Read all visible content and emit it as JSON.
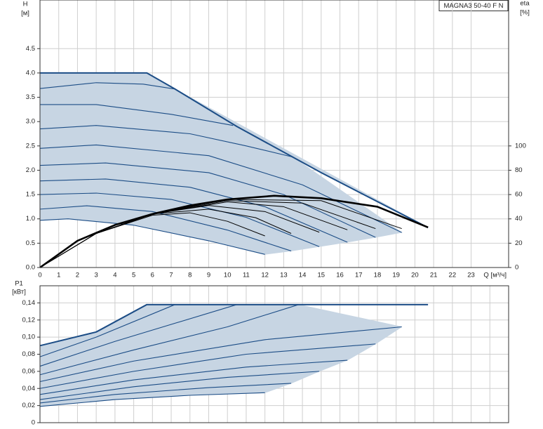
{
  "chart_data": [
    {
      "type": "line",
      "title": "MAGNA3 50-40 F N",
      "ylabel": "H",
      "yunit": "[м]",
      "y2label": "eta",
      "y2unit": "[%]",
      "xlabel": "Q [м³/ч]",
      "xlim": [
        0,
        25
      ],
      "xticks": [
        0,
        1,
        2,
        3,
        4,
        5,
        6,
        7,
        8,
        9,
        10,
        11,
        12,
        13,
        14,
        15,
        16,
        17,
        18,
        19,
        20,
        21,
        22,
        23
      ],
      "ylim": [
        0,
        5.5
      ],
      "yticks": [
        {
          "value": 0,
          "label": "0.0"
        },
        0.5,
        {
          "value": 1,
          "label": "1.0"
        },
        1.5,
        {
          "value": 2,
          "label": "2.0"
        },
        2.5,
        {
          "value": 3,
          "label": "3.0"
        },
        3.5,
        {
          "value": 4,
          "label": "4.0"
        },
        4.5
      ],
      "y2lim": [
        0,
        220
      ],
      "y2ticks": [
        0,
        20,
        40,
        60,
        80,
        100
      ],
      "grid": true,
      "fill": "#c7d5e3",
      "series": [
        {
          "color": "#1c4d86",
          "x": [
            0,
            5.7,
            7.2,
            10.5,
            15,
            20.7
          ],
          "values": [
            4.0,
            4.0,
            3.67,
            2.9,
            1.95,
            0.82
          ]
        },
        {
          "color": "#1c4d86",
          "x": [
            0,
            3,
            5.5,
            7.2
          ],
          "values": [
            3.68,
            3.8,
            3.77,
            3.67
          ]
        },
        {
          "color": "#1c4d86",
          "x": [
            0,
            3,
            7,
            10.3
          ],
          "values": [
            3.35,
            3.35,
            3.15,
            2.92
          ]
        },
        {
          "color": "#1c4d86",
          "x": [
            0,
            3,
            8,
            11,
            13.5
          ],
          "values": [
            2.85,
            2.92,
            2.75,
            2.5,
            2.27
          ]
        },
        {
          "color": "#1c4d86",
          "x": [
            0,
            3,
            9,
            14,
            19.3
          ],
          "values": [
            2.45,
            2.52,
            2.3,
            1.7,
            0.72
          ]
        },
        {
          "color": "#1c4d86",
          "x": [
            0,
            3.5,
            9,
            13,
            17.9
          ],
          "values": [
            2.1,
            2.15,
            1.95,
            1.5,
            0.62
          ]
        },
        {
          "color": "#1c4d86",
          "x": [
            0,
            3.5,
            8,
            12,
            16.4
          ],
          "values": [
            1.78,
            1.82,
            1.65,
            1.25,
            0.52
          ]
        },
        {
          "color": "#1c4d86",
          "x": [
            0,
            3,
            7,
            11,
            14.9
          ],
          "values": [
            1.5,
            1.53,
            1.4,
            1.03,
            0.43
          ]
        },
        {
          "color": "#1c4d86",
          "x": [
            0,
            2.5,
            6,
            10,
            13.4
          ],
          "values": [
            1.2,
            1.27,
            1.15,
            0.77,
            0.34
          ]
        },
        {
          "color": "#1c4d86",
          "x": [
            0,
            1.5,
            5,
            9,
            12
          ],
          "values": [
            0.97,
            1.0,
            0.87,
            0.55,
            0.27
          ]
        },
        {
          "color": "#000000",
          "axis": "y2",
          "x": [
            0,
            2,
            4,
            6,
            8,
            10,
            12.5,
            15,
            18,
            20.7
          ],
          "values": [
            0,
            22,
            35,
            44,
            51,
            56,
            59,
            57,
            50,
            33
          ]
        },
        {
          "color": "#000000",
          "axis": "y2",
          "x": [
            0,
            3,
            6,
            10,
            15,
            19.3
          ],
          "values": [
            0,
            28,
            44,
            56,
            55,
            32
          ]
        },
        {
          "color": "#000000",
          "axis": "y2",
          "x": [
            0,
            3,
            6,
            10,
            14,
            17.9
          ],
          "values": [
            0,
            28,
            44,
            55,
            53,
            32
          ]
        },
        {
          "color": "#000000",
          "axis": "y2",
          "x": [
            0,
            3,
            6,
            10,
            13,
            16.4
          ],
          "values": [
            0,
            28,
            44,
            54,
            50,
            31
          ]
        },
        {
          "color": "#000000",
          "axis": "y2",
          "x": [
            0,
            3,
            6,
            9,
            12,
            14.9
          ],
          "values": [
            0,
            28,
            44,
            51,
            46,
            29
          ]
        },
        {
          "color": "#000000",
          "axis": "y2",
          "x": [
            0,
            3,
            6,
            9,
            11.5,
            13.4
          ],
          "values": [
            0,
            28,
            44,
            48,
            41,
            28
          ]
        },
        {
          "color": "#000000",
          "axis": "y2",
          "x": [
            0,
            3,
            6,
            8,
            10,
            12
          ],
          "values": [
            0,
            28,
            43,
            45,
            38,
            26
          ]
        }
      ]
    },
    {
      "type": "line",
      "ylabel": "P1",
      "yunit": "[кВт]",
      "xlim": [
        0,
        25
      ],
      "xgrid": [
        0,
        1,
        2,
        3,
        4,
        5,
        6,
        7,
        8,
        9,
        10,
        11,
        12,
        13,
        14,
        15,
        16,
        17,
        18,
        19,
        20,
        21,
        22,
        23,
        24
      ],
      "ylim": [
        0,
        0.16
      ],
      "yticks": [
        0,
        {
          "value": 0.02,
          "label": "0,02"
        },
        {
          "value": 0.04,
          "label": "0,04"
        },
        {
          "value": 0.06,
          "label": "0,06"
        },
        {
          "value": 0.08,
          "label": "0,08"
        },
        {
          "value": 0.1,
          "label": "0,10"
        },
        {
          "value": 0.12,
          "label": "0,12"
        },
        {
          "value": 0.14,
          "label": "0,14"
        }
      ],
      "grid": true,
      "fill": "#c7d5e3",
      "series": [
        {
          "color": "#1c4d86",
          "x": [
            0,
            3,
            5.7,
            20.7
          ],
          "values": [
            0.09,
            0.106,
            0.138,
            0.138
          ]
        },
        {
          "color": "#1c4d86",
          "x": [
            0,
            3,
            7.2
          ],
          "values": [
            0.077,
            0.1,
            0.138
          ]
        },
        {
          "color": "#1c4d86",
          "x": [
            0,
            4,
            10.5
          ],
          "values": [
            0.066,
            0.095,
            0.138
          ]
        },
        {
          "color": "#1c4d86",
          "x": [
            0,
            5,
            10,
            13.8
          ],
          "values": [
            0.056,
            0.085,
            0.112,
            0.138
          ]
        },
        {
          "color": "#1c4d86",
          "x": [
            0,
            5,
            12,
            19.3
          ],
          "values": [
            0.048,
            0.072,
            0.097,
            0.112
          ]
        },
        {
          "color": "#1c4d86",
          "x": [
            0,
            5,
            11,
            17.9
          ],
          "values": [
            0.04,
            0.06,
            0.08,
            0.092
          ]
        },
        {
          "color": "#1c4d86",
          "x": [
            0,
            5,
            11,
            16.4
          ],
          "values": [
            0.033,
            0.05,
            0.065,
            0.073
          ]
        },
        {
          "color": "#1c4d86",
          "x": [
            0,
            5,
            10,
            14.9
          ],
          "values": [
            0.027,
            0.042,
            0.053,
            0.06
          ]
        },
        {
          "color": "#1c4d86",
          "x": [
            0,
            4,
            9,
            13.4
          ],
          "values": [
            0.023,
            0.033,
            0.041,
            0.046
          ]
        },
        {
          "color": "#1c4d86",
          "x": [
            0,
            4,
            8,
            12
          ],
          "values": [
            0.019,
            0.027,
            0.032,
            0.035
          ]
        }
      ]
    }
  ]
}
